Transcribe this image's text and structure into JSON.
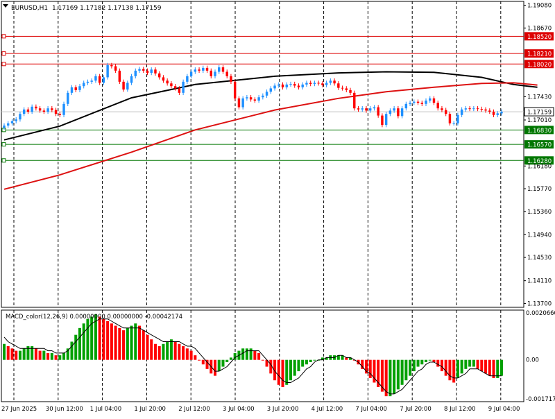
{
  "colors": {
    "background": "#ffffff",
    "frame": "#000000",
    "bull": "#1e90ff",
    "bear": "#ff0000",
    "ma_fast": "#000000",
    "ma_slow": "#dd1111",
    "resistance": "#dd0000",
    "support": "#007700",
    "current_price_line": "#c0c0c0",
    "macd_up": "#00a000",
    "macd_down": "#ff0000",
    "signal": "#000000"
  },
  "header": {
    "menu_icon": "triangle-down-icon",
    "symbol_tf": "EURUSD,H1",
    "ohlc": "1.17169 1.17182 1.17138 1.17159"
  },
  "price_axis": {
    "labels": [
      "1.19080",
      "1.18670",
      "1.18520",
      "1.18210",
      "1.18020",
      "1.17430",
      "1.17159",
      "1.17010",
      "1.16830",
      "1.16570",
      "1.16280",
      "1.16180",
      "1.15770",
      "1.15360",
      "1.14940",
      "1.14530",
      "1.14110",
      "1.13700"
    ]
  },
  "levels": {
    "resistance": [
      1.1852,
      1.1821,
      1.1802
    ],
    "support": [
      1.1683,
      1.1657,
      1.1628
    ],
    "current_price": 1.17159,
    "current_price_label": "1.17159"
  },
  "time_axis": {
    "labels": [
      "27 Jun 2025",
      "30 Jun 12:00",
      "1 Jul 04:00",
      "1 Jul 20:00",
      "2 Jul 12:00",
      "3 Jul 04:00",
      "3 Jul 20:00",
      "4 Jul 12:00",
      "7 Jul 04:00",
      "7 Jul 20:00",
      "8 Jul 12:00",
      "9 Jul 04:00"
    ],
    "separators": [
      1,
      2,
      3,
      4,
      5,
      6,
      7,
      8,
      9,
      10,
      11
    ]
  },
  "chart_data": {
    "type": "line",
    "symbol": "EURUSD",
    "timeframe": "H1",
    "price_range": [
      1.1363,
      1.1915
    ],
    "close": [
      1.1691,
      1.1695,
      1.1699,
      1.1702,
      1.1712,
      1.172,
      1.1716,
      1.1725,
      1.1722,
      1.1718,
      1.1716,
      1.1722,
      1.1719,
      1.1712,
      1.171,
      1.173,
      1.175,
      1.176,
      1.1755,
      1.1762,
      1.1768,
      1.177,
      1.1772,
      1.178,
      1.1768,
      1.1778,
      1.18,
      1.1798,
      1.179,
      1.177,
      1.1756,
      1.1768,
      1.178,
      1.179,
      1.1793,
      1.179,
      1.1786,
      1.1792,
      1.1785,
      1.1778,
      1.1772,
      1.1767,
      1.1762,
      1.1758,
      1.175,
      1.177,
      1.178,
      1.1788,
      1.1792,
      1.179,
      1.1795,
      1.179,
      1.178,
      1.1788,
      1.1796,
      1.1788,
      1.178,
      1.177,
      1.174,
      1.1724,
      1.174,
      1.1742,
      1.1738,
      1.1736,
      1.1742,
      1.1745,
      1.1752,
      1.1758,
      1.1763,
      1.1765,
      1.176,
      1.1765,
      1.1766,
      1.1763,
      1.176,
      1.1765,
      1.1768,
      1.1766,
      1.1768,
      1.1767,
      1.1764,
      1.1768,
      1.1772,
      1.1767,
      1.1759,
      1.1758,
      1.1755,
      1.175,
      1.1722,
      1.172,
      1.1722,
      1.1718,
      1.1722,
      1.1724,
      1.1709,
      1.1692,
      1.1712,
      1.1718,
      1.1722,
      1.1708,
      1.1722,
      1.173,
      1.1732,
      1.1734,
      1.1732,
      1.173,
      1.1736,
      1.174,
      1.1732,
      1.1722,
      1.1719,
      1.1712,
      1.1695,
      1.1695,
      1.171,
      1.172,
      1.1722,
      1.1721,
      1.1722,
      1.1721,
      1.172,
      1.1718,
      1.1716,
      1.171,
      1.1713,
      1.1716
    ],
    "ma_fast": {
      "x": [
        0,
        14,
        32,
        48,
        68,
        84,
        96,
        108,
        120,
        128,
        134
      ],
      "y": [
        1.1665,
        1.169,
        1.1741,
        1.1765,
        1.178,
        1.1786,
        1.1788,
        1.1787,
        1.1778,
        1.1765,
        1.176
      ]
    },
    "ma_slow": {
      "x": [
        0,
        14,
        32,
        48,
        68,
        84,
        96,
        108,
        120,
        128,
        134
      ],
      "y": [
        1.1576,
        1.1602,
        1.1643,
        1.1683,
        1.1719,
        1.174,
        1.1752,
        1.176,
        1.1767,
        1.1768,
        1.1764
      ]
    }
  },
  "macd": {
    "label": "MACD_color(12,26,9) 0.00000000 0.00000000 -0.00042174",
    "axis_labels": [
      "0.0020660",
      "0.00",
      "-0.0017175"
    ],
    "range": [
      -0.0017175,
      0.002066
    ],
    "values": [
      0.0007,
      0.0006,
      0.0005,
      0.0004,
      0.0004,
      0.0005,
      0.0006,
      0.0006,
      0.0005,
      0.0004,
      0.0004,
      0.0003,
      0.0003,
      0.0002,
      0.0002,
      0.0003,
      0.0005,
      0.0008,
      0.0011,
      0.0014,
      0.0016,
      0.0018,
      0.0019,
      0.002,
      0.0019,
      0.0018,
      0.0017,
      0.0016,
      0.0015,
      0.0014,
      0.0013,
      0.0014,
      0.0015,
      0.0016,
      0.0015,
      0.0013,
      0.0011,
      0.0009,
      0.0007,
      0.0006,
      0.0007,
      0.0008,
      0.0009,
      0.0008,
      0.0007,
      0.0006,
      0.0005,
      0.0004,
      0.0002,
      0.0,
      -0.0002,
      -0.0004,
      -0.0006,
      -0.0007,
      -0.0005,
      -0.0003,
      -0.0001,
      0.0001,
      0.0003,
      0.0004,
      0.0005,
      0.0005,
      0.0005,
      0.0004,
      0.0003,
      0.0,
      -0.0003,
      -0.0006,
      -0.0009,
      -0.0011,
      -0.0012,
      -0.0011,
      -0.0009,
      -0.0007,
      -0.0005,
      -0.0003,
      -0.0002,
      -0.0001,
      0.0,
      0.0,
      0.0001,
      0.0001,
      0.0002,
      0.0002,
      0.0002,
      0.0002,
      0.0001,
      0.0001,
      0.0,
      -0.0002,
      -0.0004,
      -0.0006,
      -0.0008,
      -0.001,
      -0.0012,
      -0.0014,
      -0.0016,
      -0.0016,
      -0.0015,
      -0.0013,
      -0.0011,
      -0.0009,
      -0.0007,
      -0.0005,
      -0.0003,
      -0.0002,
      -0.0001,
      0.0,
      -0.0001,
      -0.0003,
      -0.0005,
      -0.0007,
      -0.0009,
      -0.001,
      -0.0008,
      -0.0006,
      -0.0004,
      -0.0003,
      -0.0003,
      -0.0004,
      -0.0005,
      -0.0006,
      -0.0007,
      -0.0008,
      -0.0008,
      -0.0007
    ],
    "signal": [
      0.001,
      0.0008,
      0.0007,
      0.0006,
      0.0005,
      0.0005,
      0.0005,
      0.0005,
      0.0005,
      0.0005,
      0.0005,
      0.0004,
      0.0004,
      0.0003,
      0.0003,
      0.0003,
      0.0004,
      0.0006,
      0.0008,
      0.001,
      0.0012,
      0.0014,
      0.0016,
      0.0017,
      0.0018,
      0.0018,
      0.0018,
      0.0017,
      0.0016,
      0.0015,
      0.0014,
      0.0014,
      0.0014,
      0.0014,
      0.0014,
      0.0013,
      0.0012,
      0.0011,
      0.001,
      0.0009,
      0.0008,
      0.0008,
      0.0008,
      0.0008,
      0.0008,
      0.0007,
      0.0006,
      0.0006,
      0.0005,
      0.0003,
      0.0001,
      -0.0001,
      -0.0003,
      -0.0005,
      -0.0005,
      -0.0004,
      -0.0003,
      -0.0001,
      0.0001,
      0.0002,
      0.0003,
      0.0004,
      0.0004,
      0.0004,
      0.0004,
      0.0002,
      0.0,
      -0.0002,
      -0.0005,
      -0.0007,
      -0.0009,
      -0.001,
      -0.001,
      -0.0009,
      -0.0008,
      -0.0006,
      -0.0004,
      -0.0003,
      -0.0001,
      0.0,
      0.0,
      0.0001,
      0.0001,
      0.0001,
      0.0002,
      0.0002,
      0.0001,
      0.0001,
      0.0,
      -0.0001,
      -0.0003,
      -0.0005,
      -0.0006,
      -0.0008,
      -0.001,
      -0.0012,
      -0.0014,
      -0.0015,
      -0.0015,
      -0.0014,
      -0.0013,
      -0.0011,
      -0.0009,
      -0.0007,
      -0.0005,
      -0.0004,
      -0.0002,
      -0.0001,
      -0.0001,
      -0.0002,
      -0.0003,
      -0.0005,
      -0.0007,
      -0.0008,
      -0.0008,
      -0.0007,
      -0.0006,
      -0.0004,
      -0.0004,
      -0.0004,
      -0.0005,
      -0.0006,
      -0.0007,
      -0.0007,
      -0.0007,
      -0.0007
    ]
  }
}
